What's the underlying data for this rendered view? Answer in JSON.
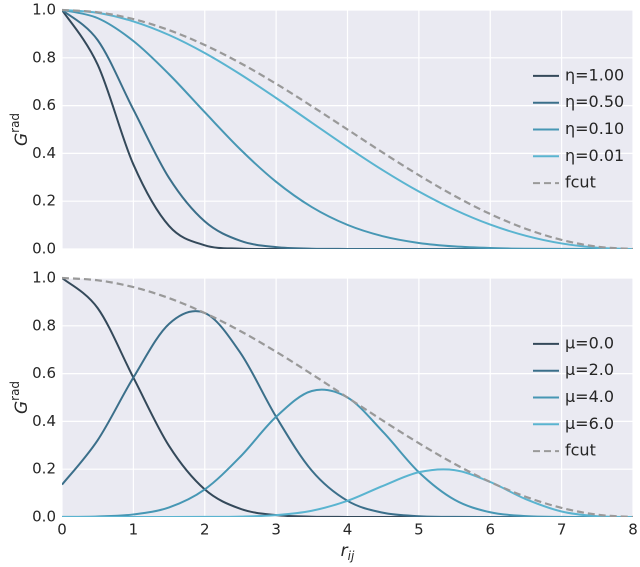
{
  "chart_data": [
    {
      "type": "line",
      "x": [
        0,
        0.5,
        1,
        1.5,
        2,
        2.5,
        3,
        3.5,
        4,
        4.5,
        5,
        5.5,
        6,
        6.5,
        7,
        7.5,
        8
      ],
      "series": [
        {
          "name": "η=1.00",
          "color": "#34495a",
          "dash": false,
          "values": [
            1,
            0.7713,
            0.3539,
            0.0965,
            0.0156,
            0.0015,
            0.0001,
            0,
            0,
            0,
            0,
            0,
            0,
            0,
            0,
            0,
            0
          ]
        },
        {
          "name": "η=0.50",
          "color": "#3b6f8a",
          "dash": false,
          "values": [
            1,
            0.874,
            0.5834,
            0.2973,
            0.1155,
            0.0342,
            0.0077,
            0.0013,
            0.0002,
            0,
            0,
            0,
            0,
            0,
            0,
            0,
            0
          ]
        },
        {
          "name": "η=0.10",
          "color": "#4797b4",
          "dash": false,
          "values": [
            1,
            0.966,
            0.8703,
            0.7312,
            0.5722,
            0.4163,
            0.2811,
            0.1755,
            0.1009,
            0.0531,
            0.0253,
            0.0108,
            0.004,
            0.0012,
            0.0003,
            0,
            0
          ]
        },
        {
          "name": "η=0.01",
          "color": "#5ab4d0",
          "dash": false,
          "values": [
            1,
            0.9879,
            0.9523,
            0.8954,
            0.8201,
            0.7307,
            0.6318,
            0.5286,
            0.4261,
            0.3287,
            0.2404,
            0.1642,
            0.1021,
            0.0553,
            0.0233,
            0.0055,
            0
          ]
        },
        {
          "name": "fcut",
          "color": "#999999",
          "dash": true,
          "values": [
            1,
            0.9904,
            0.9619,
            0.9157,
            0.8536,
            0.7778,
            0.6913,
            0.5975,
            0.5,
            0.4025,
            0.3087,
            0.2222,
            0.1464,
            0.0843,
            0.0381,
            0.0096,
            0
          ]
        }
      ],
      "xlim": [
        0,
        8
      ],
      "ylim": [
        0,
        1
      ],
      "xticks": [
        0,
        1,
        2,
        3,
        4,
        5,
        6,
        7,
        8
      ],
      "xtick_labels": false,
      "yticks": [
        {
          "value": 0,
          "label": "0.0"
        },
        0.2,
        0.4,
        0.6,
        0.8,
        {
          "value": 1,
          "label": "1.0"
        }
      ],
      "ylabel": {
        "main": "G",
        "sup": "rad"
      },
      "grid": true,
      "legend": "center right"
    },
    {
      "type": "line",
      "x": [
        0,
        0.5,
        1,
        1.5,
        2,
        2.5,
        3,
        3.5,
        4,
        4.5,
        5,
        5.5,
        6,
        6.5,
        7,
        7.5,
        8
      ],
      "series": [
        {
          "name": "μ=0.0",
          "color": "#34495a",
          "dash": false,
          "values": [
            1,
            0.874,
            0.5834,
            0.2973,
            0.1155,
            0.0342,
            0.0077,
            0.0013,
            0.0002,
            0,
            0,
            0,
            0,
            0,
            0,
            0,
            0
          ]
        },
        {
          "name": "μ=2.0",
          "color": "#3b6f8a",
          "dash": false,
          "values": [
            0.1353,
            0.3216,
            0.5834,
            0.8081,
            0.8536,
            0.6864,
            0.4193,
            0.194,
            0.0677,
            0.0177,
            0.0034,
            0.0005,
            0,
            0,
            0,
            0,
            0
          ]
        },
        {
          "name": "μ=4.0",
          "color": "#4797b4",
          "dash": false,
          "values": [
            0.0003,
            0.0022,
            0.0107,
            0.0402,
            0.1155,
            0.2526,
            0.4193,
            0.5273,
            0.5,
            0.3552,
            0.1872,
            0.0721,
            0.0198,
            0.0037,
            0.0004,
            0,
            0
          ]
        },
        {
          "name": "μ=6.0",
          "color": "#5ab4d0",
          "dash": false,
          "values": [
            0,
            0,
            0,
            0,
            0.0003,
            0.0017,
            0.0077,
            0.0262,
            0.0677,
            0.1307,
            0.1872,
            0.1961,
            0.1464,
            0.0744,
            0.0231,
            0.0031,
            0
          ]
        },
        {
          "name": "fcut",
          "color": "#999999",
          "dash": true,
          "values": [
            1,
            0.9904,
            0.9619,
            0.9157,
            0.8536,
            0.7778,
            0.6913,
            0.5975,
            0.5,
            0.4025,
            0.3087,
            0.2222,
            0.1464,
            0.0843,
            0.0381,
            0.0096,
            0
          ]
        }
      ],
      "xlim": [
        0,
        8
      ],
      "ylim": [
        0,
        1
      ],
      "xticks": [
        0,
        1,
        2,
        3,
        4,
        5,
        6,
        7,
        8
      ],
      "xtick_labels": true,
      "yticks": [
        {
          "value": 0,
          "label": "0.0"
        },
        0.2,
        0.4,
        0.6,
        0.8,
        {
          "value": 1,
          "label": "1.0"
        }
      ],
      "ylabel": {
        "main": "G",
        "sup": "rad"
      },
      "xlabel": {
        "main": "r",
        "sub": "ij"
      },
      "grid": true,
      "legend": "center right"
    }
  ]
}
